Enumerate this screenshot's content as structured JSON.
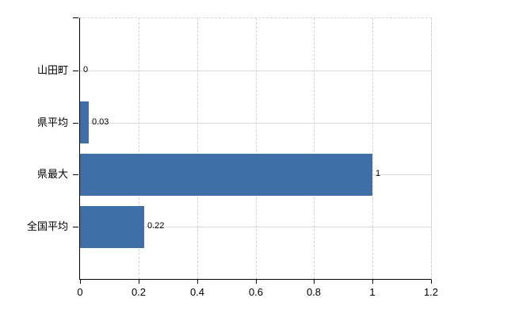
{
  "chart": {
    "background_color": "#ffffff",
    "bar_color": "#3f6fa7",
    "axis_color": "#000000",
    "text_color": "#000000",
    "gridline_vertical_color": "#d4d1d3",
    "gridline_horizontal_color": "#d7dcd2",
    "plot_border_dashed_color": "#d9d2d6"
  },
  "chart_data": {
    "type": "bar",
    "orientation": "horizontal",
    "title": "",
    "xlabel": "",
    "ylabel": "",
    "categories": [
      "山田町",
      "県平均",
      "県最大",
      "全国平均"
    ],
    "values": [
      0,
      0.03,
      1,
      0.22
    ],
    "value_labels": [
      "0",
      "0.03",
      "1",
      "0.22"
    ],
    "xlim": [
      0,
      1.2
    ],
    "xticks": [
      0,
      0.2,
      0.4,
      0.6,
      0.8,
      1,
      1.2
    ],
    "xtick_labels": [
      "0",
      "0.2",
      "0.4",
      "0.6",
      "0.8",
      "1",
      "1.2"
    ],
    "grid": true,
    "legend": false
  }
}
